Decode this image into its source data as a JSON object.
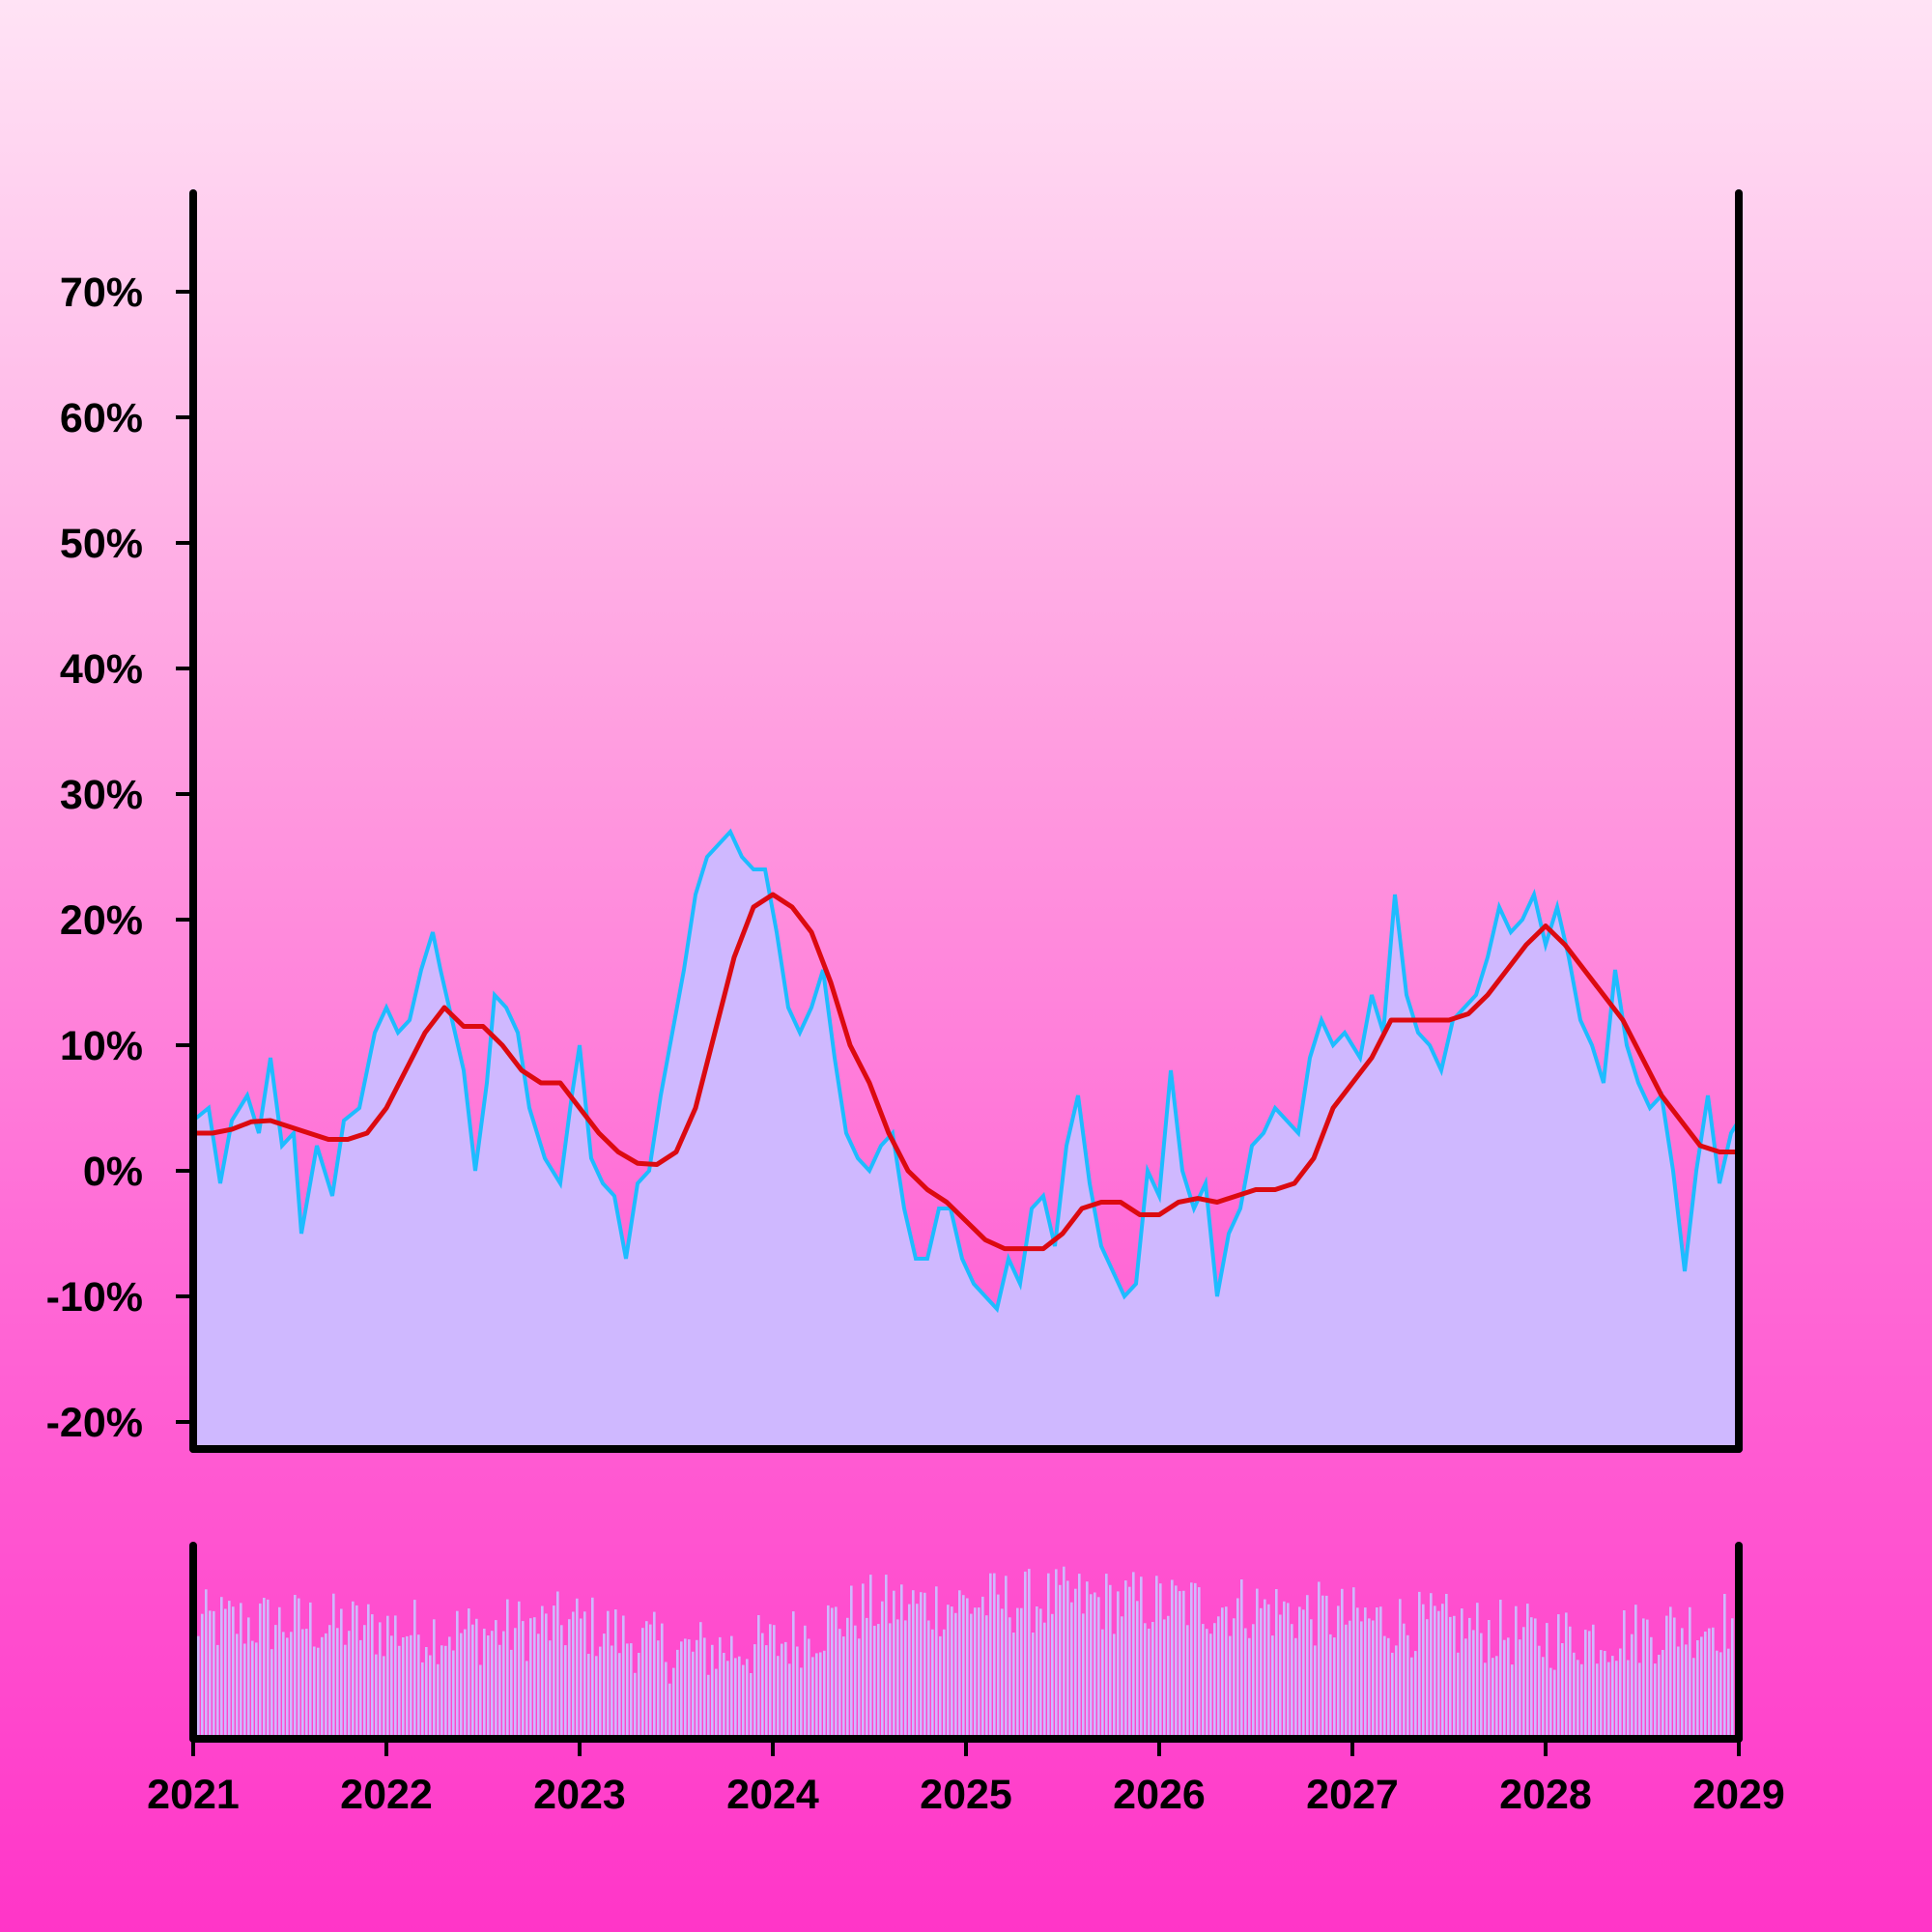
{
  "chart_data": [
    {
      "type": "area",
      "role": "main-panel",
      "y_unit": "%",
      "ylim": [
        -22,
        78
      ],
      "xlim": [
        2021,
        2029
      ],
      "y_ticks": [
        -20,
        -10,
        0,
        10,
        20,
        30,
        40,
        50,
        60,
        70
      ],
      "y_tick_labels": [
        "-20%",
        "-10%",
        "0%",
        "10%",
        "20%",
        "30%",
        "40%",
        "50%",
        "60%",
        "70%"
      ],
      "grid": false,
      "legend": "none",
      "series": [
        {
          "style": "stepped area",
          "color": "#1ebcff",
          "fill": "#cfb8ff",
          "points": [
            [
              2021.0,
              4
            ],
            [
              2021.08,
              5
            ],
            [
              2021.14,
              -1
            ],
            [
              2021.2,
              4
            ],
            [
              2021.28,
              6
            ],
            [
              2021.34,
              3
            ],
            [
              2021.4,
              9
            ],
            [
              2021.46,
              2
            ],
            [
              2021.52,
              3
            ],
            [
              2021.56,
              -5
            ],
            [
              2021.64,
              2
            ],
            [
              2021.72,
              -2
            ],
            [
              2021.78,
              4
            ],
            [
              2021.86,
              5
            ],
            [
              2021.94,
              11
            ],
            [
              2022.0,
              13
            ],
            [
              2022.06,
              11
            ],
            [
              2022.12,
              12
            ],
            [
              2022.18,
              16
            ],
            [
              2022.24,
              19
            ],
            [
              2022.28,
              16
            ],
            [
              2022.34,
              12
            ],
            [
              2022.4,
              8
            ],
            [
              2022.46,
              0
            ],
            [
              2022.52,
              7
            ],
            [
              2022.56,
              14
            ],
            [
              2022.62,
              13
            ],
            [
              2022.68,
              11
            ],
            [
              2022.74,
              5
            ],
            [
              2022.82,
              1
            ],
            [
              2022.9,
              -1
            ],
            [
              2022.96,
              6
            ],
            [
              2023.0,
              10
            ],
            [
              2023.06,
              1
            ],
            [
              2023.12,
              -1
            ],
            [
              2023.18,
              -2
            ],
            [
              2023.24,
              -7
            ],
            [
              2023.3,
              -1
            ],
            [
              2023.36,
              0
            ],
            [
              2023.42,
              6
            ],
            [
              2023.48,
              11
            ],
            [
              2023.54,
              16
            ],
            [
              2023.6,
              22
            ],
            [
              2023.66,
              25
            ],
            [
              2023.72,
              26
            ],
            [
              2023.78,
              27
            ],
            [
              2023.84,
              25
            ],
            [
              2023.9,
              24
            ],
            [
              2023.96,
              24
            ],
            [
              2024.02,
              19
            ],
            [
              2024.08,
              13
            ],
            [
              2024.14,
              11
            ],
            [
              2024.2,
              13
            ],
            [
              2024.26,
              16
            ],
            [
              2024.32,
              9
            ],
            [
              2024.38,
              3
            ],
            [
              2024.44,
              1
            ],
            [
              2024.5,
              0
            ],
            [
              2024.56,
              2
            ],
            [
              2024.62,
              3
            ],
            [
              2024.68,
              -3
            ],
            [
              2024.74,
              -7
            ],
            [
              2024.8,
              -7
            ],
            [
              2024.86,
              -3
            ],
            [
              2024.92,
              -3
            ],
            [
              2024.98,
              -7
            ],
            [
              2025.04,
              -9
            ],
            [
              2025.1,
              -10
            ],
            [
              2025.16,
              -11
            ],
            [
              2025.22,
              -7
            ],
            [
              2025.28,
              -9
            ],
            [
              2025.34,
              -3
            ],
            [
              2025.4,
              -2
            ],
            [
              2025.46,
              -6
            ],
            [
              2025.52,
              2
            ],
            [
              2025.58,
              6
            ],
            [
              2025.64,
              -1
            ],
            [
              2025.7,
              -6
            ],
            [
              2025.76,
              -8
            ],
            [
              2025.82,
              -10
            ],
            [
              2025.88,
              -9
            ],
            [
              2025.94,
              0
            ],
            [
              2026.0,
              -2
            ],
            [
              2026.06,
              8
            ],
            [
              2026.12,
              0
            ],
            [
              2026.18,
              -3
            ],
            [
              2026.24,
              -1
            ],
            [
              2026.3,
              -10
            ],
            [
              2026.36,
              -5
            ],
            [
              2026.42,
              -3
            ],
            [
              2026.48,
              2
            ],
            [
              2026.54,
              3
            ],
            [
              2026.6,
              5
            ],
            [
              2026.66,
              4
            ],
            [
              2026.72,
              3
            ],
            [
              2026.78,
              9
            ],
            [
              2026.84,
              12
            ],
            [
              2026.9,
              10
            ],
            [
              2026.96,
              11
            ],
            [
              2027.04,
              9
            ],
            [
              2027.1,
              14
            ],
            [
              2027.16,
              11
            ],
            [
              2027.22,
              22
            ],
            [
              2027.28,
              14
            ],
            [
              2027.34,
              11
            ],
            [
              2027.4,
              10
            ],
            [
              2027.46,
              8
            ],
            [
              2027.52,
              12
            ],
            [
              2027.58,
              13
            ],
            [
              2027.64,
              14
            ],
            [
              2027.7,
              17
            ],
            [
              2027.76,
              21
            ],
            [
              2027.82,
              19
            ],
            [
              2027.88,
              20
            ],
            [
              2027.94,
              22
            ],
            [
              2028.0,
              18
            ],
            [
              2028.06,
              21
            ],
            [
              2028.12,
              17
            ],
            [
              2028.18,
              12
            ],
            [
              2028.24,
              10
            ],
            [
              2028.3,
              7
            ],
            [
              2028.36,
              16
            ],
            [
              2028.42,
              10
            ],
            [
              2028.48,
              7
            ],
            [
              2028.54,
              5
            ],
            [
              2028.6,
              6
            ],
            [
              2028.66,
              0
            ],
            [
              2028.72,
              -8
            ],
            [
              2028.78,
              0
            ],
            [
              2028.84,
              6
            ],
            [
              2028.9,
              -1
            ],
            [
              2028.96,
              3
            ],
            [
              2029.0,
              4
            ]
          ]
        },
        {
          "style": "line",
          "color": "#dc0a10",
          "points": [
            [
              2021.0,
              3
            ],
            [
              2021.1,
              3
            ],
            [
              2021.2,
              3.3
            ],
            [
              2021.3,
              3.9
            ],
            [
              2021.4,
              4
            ],
            [
              2021.5,
              3.5
            ],
            [
              2021.6,
              3
            ],
            [
              2021.7,
              2.5
            ],
            [
              2021.8,
              2.5
            ],
            [
              2021.9,
              3
            ],
            [
              2022.0,
              5
            ],
            [
              2022.1,
              8
            ],
            [
              2022.2,
              11
            ],
            [
              2022.3,
              13
            ],
            [
              2022.4,
              11.5
            ],
            [
              2022.5,
              11.5
            ],
            [
              2022.6,
              10
            ],
            [
              2022.7,
              8
            ],
            [
              2022.8,
              7
            ],
            [
              2022.9,
              7
            ],
            [
              2023.0,
              5
            ],
            [
              2023.1,
              3
            ],
            [
              2023.2,
              1.5
            ],
            [
              2023.3,
              0.6
            ],
            [
              2023.4,
              0.5
            ],
            [
              2023.5,
              1.5
            ],
            [
              2023.6,
              5
            ],
            [
              2023.7,
              11
            ],
            [
              2023.8,
              17
            ],
            [
              2023.9,
              21
            ],
            [
              2024.0,
              22
            ],
            [
              2024.1,
              21
            ],
            [
              2024.2,
              19
            ],
            [
              2024.3,
              15
            ],
            [
              2024.4,
              10
            ],
            [
              2024.5,
              7
            ],
            [
              2024.6,
              3
            ],
            [
              2024.7,
              0
            ],
            [
              2024.8,
              -1.5
            ],
            [
              2024.9,
              -2.5
            ],
            [
              2025.0,
              -4
            ],
            [
              2025.1,
              -5.5
            ],
            [
              2025.2,
              -6.2
            ],
            [
              2025.3,
              -6.2
            ],
            [
              2025.4,
              -6.2
            ],
            [
              2025.5,
              -5
            ],
            [
              2025.6,
              -3
            ],
            [
              2025.7,
              -2.5
            ],
            [
              2025.8,
              -2.5
            ],
            [
              2025.9,
              -3.5
            ],
            [
              2026.0,
              -3.5
            ],
            [
              2026.1,
              -2.5
            ],
            [
              2026.2,
              -2.2
            ],
            [
              2026.3,
              -2.5
            ],
            [
              2026.4,
              -2
            ],
            [
              2026.5,
              -1.5
            ],
            [
              2026.6,
              -1.5
            ],
            [
              2026.7,
              -1
            ],
            [
              2026.8,
              1
            ],
            [
              2026.9,
              5
            ],
            [
              2027.0,
              7
            ],
            [
              2027.1,
              9
            ],
            [
              2027.2,
              12
            ],
            [
              2027.3,
              12
            ],
            [
              2027.4,
              12
            ],
            [
              2027.5,
              12
            ],
            [
              2027.6,
              12.5
            ],
            [
              2027.7,
              14
            ],
            [
              2027.8,
              16
            ],
            [
              2027.9,
              18
            ],
            [
              2028.0,
              19.5
            ],
            [
              2028.1,
              18
            ],
            [
              2028.2,
              16
            ],
            [
              2028.3,
              14
            ],
            [
              2028.4,
              12
            ],
            [
              2028.5,
              9
            ],
            [
              2028.6,
              6
            ],
            [
              2028.7,
              4
            ],
            [
              2028.8,
              2
            ],
            [
              2028.9,
              1.5
            ],
            [
              2029.0,
              1.5
            ]
          ]
        }
      ]
    },
    {
      "type": "bar",
      "role": "volume-panel",
      "xlim": [
        2021,
        2029
      ],
      "x_ticks": [
        2021,
        2022,
        2023,
        2024,
        2025,
        2026,
        2027,
        2028,
        2029
      ],
      "x_tick_labels": [
        "2021",
        "2022",
        "2023",
        "2024",
        "2025",
        "2026",
        "2027",
        "2028",
        "2029"
      ],
      "bar_color": "#cfb8ff",
      "grid": false,
      "legend": "none",
      "bars_count": 400,
      "envelope": [
        [
          2021.0,
          0.6
        ],
        [
          2021.5,
          0.6
        ],
        [
          2022.0,
          0.57
        ],
        [
          2022.5,
          0.55
        ],
        [
          2023.0,
          0.6
        ],
        [
          2023.5,
          0.45
        ],
        [
          2024.0,
          0.48
        ],
        [
          2024.5,
          0.68
        ],
        [
          2025.0,
          0.7
        ],
        [
          2025.5,
          0.72
        ],
        [
          2026.0,
          0.7
        ],
        [
          2026.5,
          0.68
        ],
        [
          2027.0,
          0.62
        ],
        [
          2027.5,
          0.58
        ],
        [
          2028.0,
          0.52
        ],
        [
          2028.5,
          0.55
        ],
        [
          2029.0,
          0.62
        ]
      ]
    }
  ]
}
